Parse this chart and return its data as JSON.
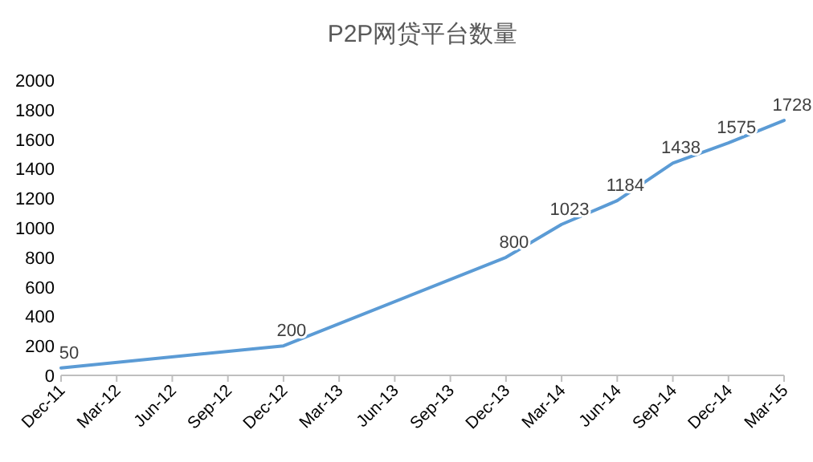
{
  "chart_data": {
    "type": "line",
    "title": "P2P网贷平台数量",
    "x": [
      "2011-12",
      "2012-12",
      "2013-12",
      "2014-03",
      "2014-06",
      "2014-09",
      "2014-12",
      "2015-03"
    ],
    "values": [
      50,
      200,
      800,
      1023,
      1184,
      1438,
      1575,
      1728
    ],
    "color": "#5b9bd5",
    "data_labels": true,
    "marker": "none",
    "grid": false,
    "xlim": [
      "2011-12",
      "2015-03"
    ],
    "xticks": [
      {
        "value": "2011-12",
        "label": "Dec-11"
      },
      {
        "value": "2012-03",
        "label": "Mar-12"
      },
      {
        "value": "2012-06",
        "label": "Jun-12"
      },
      {
        "value": "2012-09",
        "label": "Sep-12"
      },
      {
        "value": "2012-12",
        "label": "Dec-12"
      },
      {
        "value": "2013-03",
        "label": "Mar-13"
      },
      {
        "value": "2013-06",
        "label": "Jun-13"
      },
      {
        "value": "2013-09",
        "label": "Sep-13"
      },
      {
        "value": "2013-12",
        "label": "Dec-13"
      },
      {
        "value": "2014-03",
        "label": "Mar-14"
      },
      {
        "value": "2014-06",
        "label": "Jun-14"
      },
      {
        "value": "2014-09",
        "label": "Sep-14"
      },
      {
        "value": "2014-12",
        "label": "Dec-14"
      },
      {
        "value": "2015-03",
        "label": "Mar-15"
      }
    ],
    "ylim": [
      0,
      2000
    ],
    "yticks": [
      0,
      200,
      400,
      600,
      800,
      1000,
      1200,
      1400,
      1600,
      1800,
      2000
    ]
  }
}
